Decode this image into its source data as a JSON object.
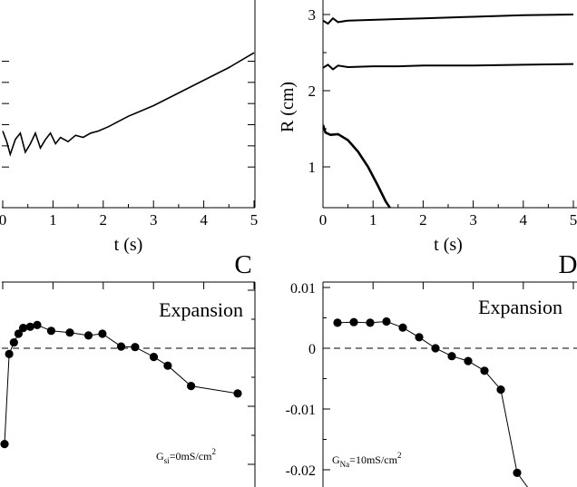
{
  "chart_data": [
    {
      "type": "line",
      "panel": "A",
      "xlabel": "t (s)",
      "ylabel": "",
      "xlim": [
        0,
        5
      ],
      "xticks": [
        "0",
        "1",
        "2",
        "3",
        "4",
        "5"
      ],
      "yticks_labeled": false,
      "series": [
        {
          "x": [
            0,
            0.08,
            0.15,
            0.25,
            0.35,
            0.45,
            0.55,
            0.65,
            0.75,
            0.85,
            0.95,
            1.05,
            1.15,
            1.3,
            1.45,
            1.6,
            1.75,
            1.9,
            2.1,
            2.5,
            3.0,
            3.5,
            4.0,
            4.5,
            5.0
          ],
          "y": [
            0.04,
            -0.06,
            -0.18,
            -0.04,
            0.02,
            -0.16,
            -0.08,
            0.02,
            -0.12,
            -0.04,
            0.02,
            -0.08,
            -0.02,
            -0.06,
            0.0,
            -0.02,
            0.02,
            0.04,
            0.08,
            0.18,
            0.28,
            0.4,
            0.52,
            0.64,
            0.78
          ]
        }
      ]
    },
    {
      "type": "line",
      "panel": "B",
      "xlabel": "t (s)",
      "ylabel": "R (cm)",
      "xlim": [
        0,
        5
      ],
      "ylim": [
        0.35,
        3.1
      ],
      "xticks": [
        "0",
        "1",
        "2",
        "3",
        "4",
        "5"
      ],
      "yticks": [
        "1",
        "2",
        "3"
      ],
      "series": [
        {
          "x": [
            0,
            0.1,
            0.2,
            0.3,
            0.5,
            1.0,
            1.5,
            2.0,
            3.0,
            4.0,
            5.0
          ],
          "y": [
            2.92,
            2.88,
            2.95,
            2.9,
            2.92,
            2.93,
            2.94,
            2.95,
            2.97,
            2.99,
            3.0
          ]
        },
        {
          "x": [
            0,
            0.1,
            0.2,
            0.3,
            0.5,
            1.0,
            1.5,
            2.0,
            3.0,
            4.0,
            5.0
          ],
          "y": [
            2.3,
            2.34,
            2.28,
            2.33,
            2.31,
            2.32,
            2.32,
            2.33,
            2.33,
            2.34,
            2.35
          ]
        },
        {
          "x": [
            0,
            0.05,
            0.15,
            0.3,
            0.5,
            0.7,
            0.9,
            1.1,
            1.25,
            1.35,
            1.45
          ],
          "y": [
            1.55,
            1.45,
            1.42,
            1.43,
            1.35,
            1.2,
            1.0,
            0.75,
            0.55,
            0.45,
            0.35
          ]
        }
      ]
    },
    {
      "type": "scatter",
      "panel": "C",
      "panel_label": "C",
      "annotation": "Expansion",
      "condition_main": "G",
      "condition_sub": "si",
      "condition_rest": "=0mS/cm",
      "condition_sup": "2",
      "reference_line": 0,
      "yticks_labeled": false,
      "series": [
        {
          "x": [
            0,
            0.1,
            0.2,
            0.3,
            0.4,
            0.55,
            0.7,
            1.0,
            1.4,
            1.8,
            2.1,
            2.5,
            2.8,
            3.2,
            3.5,
            4.0,
            5.0
          ],
          "y": [
            -0.0165,
            -0.001,
            0.001,
            0.0025,
            0.0035,
            0.0037,
            0.004,
            0.003,
            0.0027,
            0.0022,
            0.0025,
            0.0003,
            0.0002,
            -0.0015,
            -0.003,
            -0.0065,
            -0.0078
          ]
        }
      ]
    },
    {
      "type": "scatter",
      "panel": "D",
      "panel_label": "D",
      "annotation": "Expansion",
      "condition_main": "G",
      "condition_sub": "Na",
      "condition_rest": "=10mS/cm",
      "condition_sup": "2",
      "reference_line": 0,
      "yticks": [
        "0.01",
        "0",
        "-0.01",
        "-0.02"
      ],
      "series": [
        {
          "x": [
            0,
            0.5,
            1.0,
            1.5,
            2.0,
            2.5,
            3.0,
            3.5,
            4.0,
            4.5,
            5.0,
            5.5,
            6.0
          ],
          "y": [
            0.0042,
            0.0043,
            0.0042,
            0.0044,
            0.0034,
            0.0018,
            0.0,
            -0.0013,
            -0.0021,
            -0.0037,
            -0.0068,
            -0.0205,
            -0.0242
          ]
        }
      ]
    }
  ]
}
